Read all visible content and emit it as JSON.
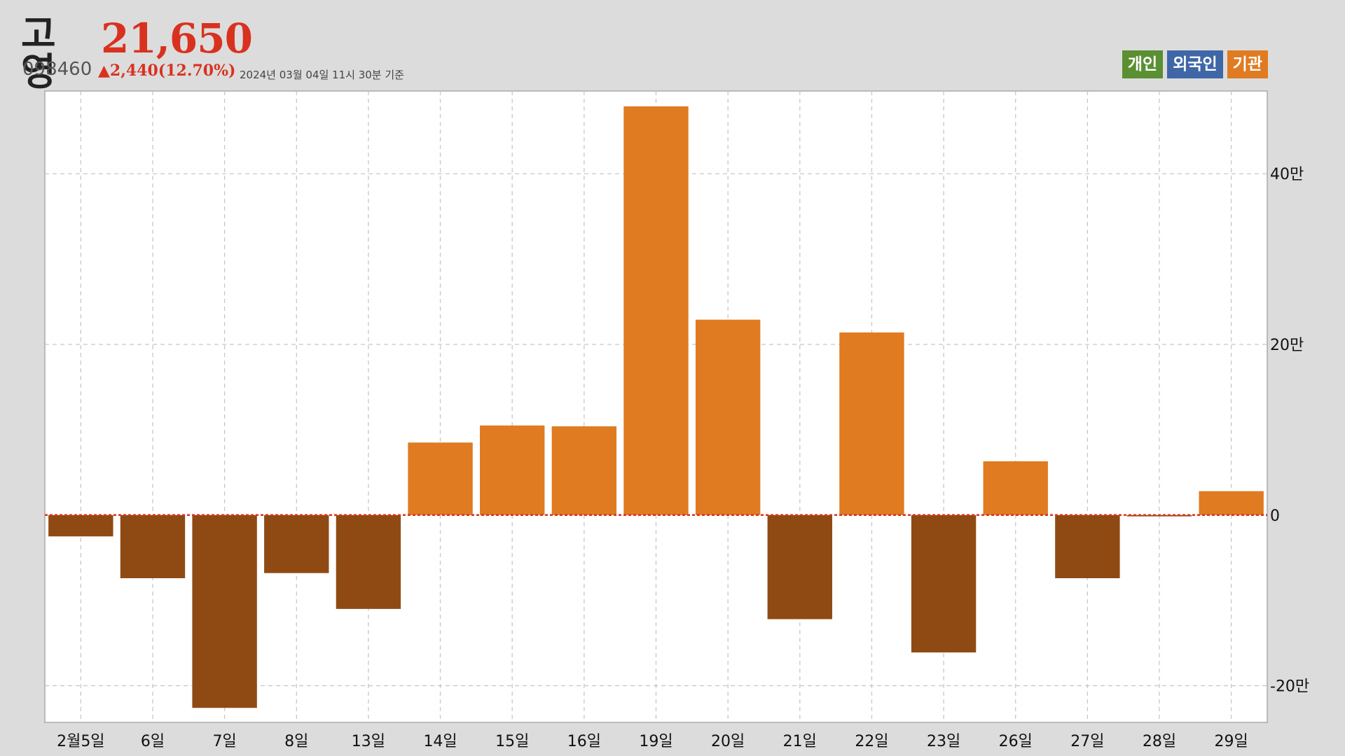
{
  "header": {
    "name": "고영",
    "price": "21,650",
    "code": "098460",
    "change": "▲2,440(12.70%)",
    "timestamp": "2024년 03월 04일 11시 30분 기준"
  },
  "legend": [
    {
      "label": "개인",
      "color": "#5a8f32"
    },
    {
      "label": "외국인",
      "color": "#3f67a8"
    },
    {
      "label": "기관",
      "color": "#e07b22"
    }
  ],
  "colors": {
    "positive": "#e07b22",
    "negative": "#8f4a13",
    "zero_line": "#d8321f",
    "grid": "#c8c8c8"
  },
  "chart_data": {
    "type": "bar",
    "series_name": "기관",
    "categories": [
      "2월5일",
      "6일",
      "7일",
      "8일",
      "13일",
      "14일",
      "15일",
      "16일",
      "19일",
      "20일",
      "21일",
      "22일",
      "23일",
      "26일",
      "27일",
      "28일",
      "29일"
    ],
    "values": [
      -25000,
      -74000,
      -226000,
      -68000,
      -110000,
      85000,
      105000,
      104000,
      479000,
      229000,
      -122000,
      214000,
      -161000,
      63000,
      -74000,
      -1500,
      28000
    ],
    "y_ticks": [
      {
        "value": 400000,
        "label": "40만"
      },
      {
        "value": 200000,
        "label": "20만"
      },
      {
        "value": 0,
        "label": "0"
      },
      {
        "value": -200000,
        "label": "-20만"
      }
    ],
    "ylim": [
      -243000,
      497000
    ],
    "grid": true
  }
}
